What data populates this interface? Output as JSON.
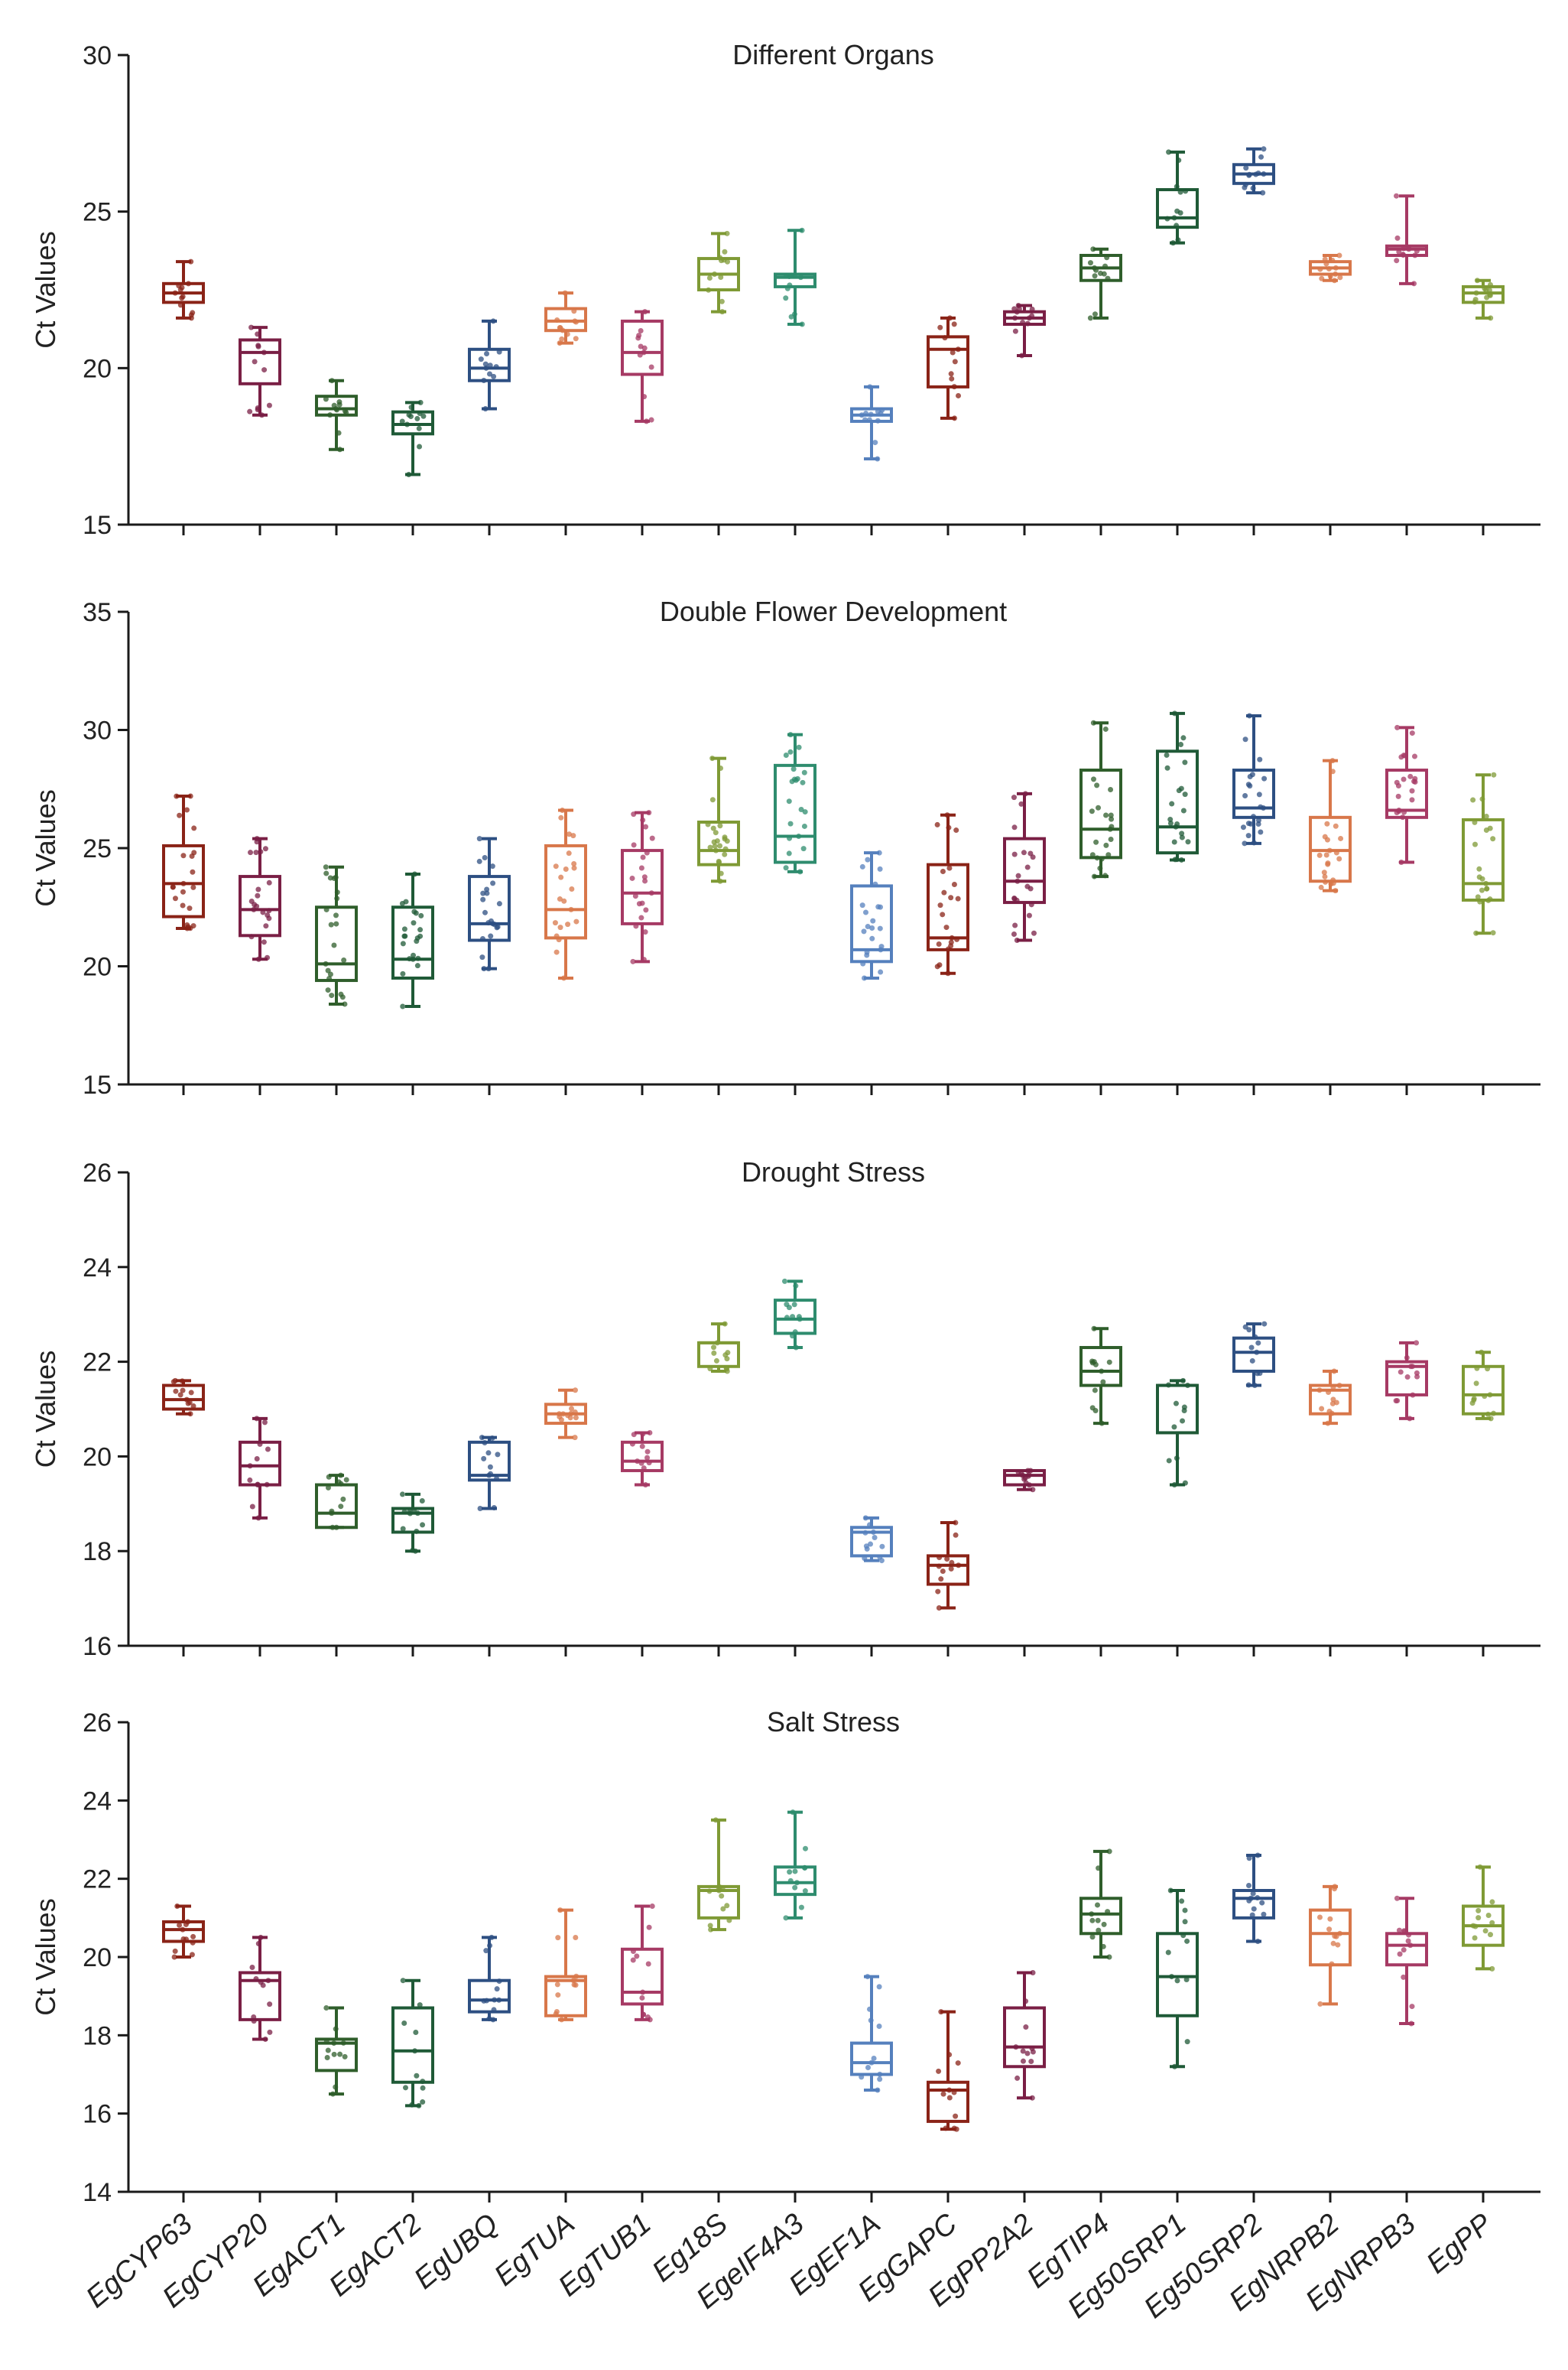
{
  "chart_data": {
    "type": "box",
    "categories": [
      "EgCYP63",
      "EgCYP20",
      "EgACT1",
      "EgACT2",
      "EgUBQ",
      "EgTUA",
      "EgTUB1",
      "Eg18S",
      "EgeIF4A3",
      "EgEF1A",
      "EgGAPC",
      "EgPP2A2",
      "EgTIP4",
      "Eg50SRP1",
      "Eg50SRP2",
      "EgNRPB2",
      "EgNRPB3",
      "EgPP"
    ],
    "colors": [
      "#8a2317",
      "#7a1f45",
      "#2f5e2b",
      "#1f5a37",
      "#2d4f82",
      "#d8774a",
      "#a63a64",
      "#7f9a35",
      "#2e8c6e",
      "#5580bd",
      "#8a2317",
      "#7a1f45",
      "#2f5e2b",
      "#1f5a37",
      "#2d4f82",
      "#d8774a",
      "#a63a64",
      "#7f9a35"
    ],
    "ylabel": "Ct Values",
    "panels": [
      {
        "title": "Different Organs",
        "ylim": [
          15,
          30
        ],
        "yticks": [
          15,
          20,
          25,
          30
        ],
        "boxes": [
          {
            "min": 21.6,
            "q1": 22.1,
            "median": 22.4,
            "q3": 22.7,
            "max": 23.4
          },
          {
            "min": 18.5,
            "q1": 19.5,
            "median": 20.5,
            "q3": 20.9,
            "max": 21.3
          },
          {
            "min": 17.4,
            "q1": 18.5,
            "median": 18.7,
            "q3": 19.1,
            "max": 19.6
          },
          {
            "min": 16.6,
            "q1": 17.9,
            "median": 18.2,
            "q3": 18.6,
            "max": 18.9
          },
          {
            "min": 18.7,
            "q1": 19.6,
            "median": 20.0,
            "q3": 20.6,
            "max": 21.5
          },
          {
            "min": 20.8,
            "q1": 21.2,
            "median": 21.5,
            "q3": 21.9,
            "max": 22.4
          },
          {
            "min": 18.3,
            "q1": 19.8,
            "median": 20.5,
            "q3": 21.5,
            "max": 21.8
          },
          {
            "min": 21.8,
            "q1": 22.5,
            "median": 23.0,
            "q3": 23.5,
            "max": 24.3
          },
          {
            "min": 21.4,
            "q1": 22.6,
            "median": 22.9,
            "q3": 23.0,
            "max": 24.4
          },
          {
            "min": 17.1,
            "q1": 18.3,
            "median": 18.5,
            "q3": 18.7,
            "max": 19.4
          },
          {
            "min": 18.4,
            "q1": 19.4,
            "median": 20.6,
            "q3": 21.0,
            "max": 21.6
          },
          {
            "min": 20.4,
            "q1": 21.4,
            "median": 21.6,
            "q3": 21.8,
            "max": 22.0
          },
          {
            "min": 21.6,
            "q1": 22.8,
            "median": 23.2,
            "q3": 23.6,
            "max": 23.8
          },
          {
            "min": 24.0,
            "q1": 24.5,
            "median": 24.8,
            "q3": 25.7,
            "max": 26.9
          },
          {
            "min": 25.6,
            "q1": 25.9,
            "median": 26.2,
            "q3": 26.5,
            "max": 27.0
          },
          {
            "min": 22.8,
            "q1": 23.0,
            "median": 23.2,
            "q3": 23.4,
            "max": 23.6
          },
          {
            "min": 22.7,
            "q1": 23.6,
            "median": 23.8,
            "q3": 23.9,
            "max": 25.5
          },
          {
            "min": 21.6,
            "q1": 22.1,
            "median": 22.4,
            "q3": 22.6,
            "max": 22.8
          }
        ]
      },
      {
        "title": "Double Flower Development",
        "ylim": [
          15,
          35
        ],
        "yticks": [
          15,
          20,
          25,
          30,
          35
        ],
        "boxes": [
          {
            "min": 21.6,
            "q1": 22.1,
            "median": 23.5,
            "q3": 25.1,
            "max": 27.2
          },
          {
            "min": 20.3,
            "q1": 21.3,
            "median": 22.4,
            "q3": 23.8,
            "max": 25.4
          },
          {
            "min": 18.4,
            "q1": 19.4,
            "median": 20.1,
            "q3": 22.5,
            "max": 24.2
          },
          {
            "min": 18.3,
            "q1": 19.5,
            "median": 20.3,
            "q3": 22.5,
            "max": 23.9
          },
          {
            "min": 19.9,
            "q1": 21.1,
            "median": 21.8,
            "q3": 23.8,
            "max": 25.4
          },
          {
            "min": 19.5,
            "q1": 21.2,
            "median": 22.4,
            "q3": 25.1,
            "max": 26.6
          },
          {
            "min": 20.2,
            "q1": 21.8,
            "median": 23.1,
            "q3": 24.9,
            "max": 26.5
          },
          {
            "min": 23.6,
            "q1": 24.3,
            "median": 24.9,
            "q3": 26.1,
            "max": 28.8
          },
          {
            "min": 24.0,
            "q1": 24.4,
            "median": 25.5,
            "q3": 28.5,
            "max": 29.8
          },
          {
            "min": 19.5,
            "q1": 20.2,
            "median": 20.7,
            "q3": 23.4,
            "max": 24.8
          },
          {
            "min": 19.7,
            "q1": 20.7,
            "median": 21.2,
            "q3": 24.3,
            "max": 26.4
          },
          {
            "min": 21.1,
            "q1": 22.7,
            "median": 23.6,
            "q3": 25.4,
            "max": 27.3
          },
          {
            "min": 23.8,
            "q1": 24.6,
            "median": 25.8,
            "q3": 28.3,
            "max": 30.3
          },
          {
            "min": 24.5,
            "q1": 24.8,
            "median": 25.9,
            "q3": 29.1,
            "max": 30.7
          },
          {
            "min": 25.2,
            "q1": 26.3,
            "median": 26.7,
            "q3": 28.3,
            "max": 30.6
          },
          {
            "min": 23.2,
            "q1": 23.6,
            "median": 24.9,
            "q3": 26.3,
            "max": 28.7
          },
          {
            "min": 24.4,
            "q1": 26.3,
            "median": 26.6,
            "q3": 28.3,
            "max": 30.1
          },
          {
            "min": 21.4,
            "q1": 22.8,
            "median": 23.5,
            "q3": 26.2,
            "max": 28.1
          }
        ]
      },
      {
        "title": "Drought Stress",
        "ylim": [
          16,
          26
        ],
        "yticks": [
          16,
          18,
          20,
          22,
          24,
          26
        ],
        "boxes": [
          {
            "min": 20.9,
            "q1": 21.0,
            "median": 21.2,
            "q3": 21.5,
            "max": 21.6
          },
          {
            "min": 18.7,
            "q1": 19.4,
            "median": 19.8,
            "q3": 20.3,
            "max": 20.8
          },
          {
            "min": 18.5,
            "q1": 18.5,
            "median": 18.8,
            "q3": 19.4,
            "max": 19.6
          },
          {
            "min": 18.0,
            "q1": 18.4,
            "median": 18.8,
            "q3": 18.9,
            "max": 19.2
          },
          {
            "min": 18.9,
            "q1": 19.5,
            "median": 19.6,
            "q3": 20.3,
            "max": 20.4
          },
          {
            "min": 20.4,
            "q1": 20.7,
            "median": 20.9,
            "q3": 21.1,
            "max": 21.4
          },
          {
            "min": 19.4,
            "q1": 19.7,
            "median": 19.9,
            "q3": 20.3,
            "max": 20.5
          },
          {
            "min": 21.8,
            "q1": 21.9,
            "median": 22.4,
            "q3": 22.4,
            "max": 22.8
          },
          {
            "min": 22.3,
            "q1": 22.6,
            "median": 22.9,
            "q3": 23.3,
            "max": 23.7
          },
          {
            "min": 17.8,
            "q1": 17.9,
            "median": 18.4,
            "q3": 18.5,
            "max": 18.7
          },
          {
            "min": 16.8,
            "q1": 17.3,
            "median": 17.7,
            "q3": 17.9,
            "max": 18.6
          },
          {
            "min": 19.3,
            "q1": 19.4,
            "median": 19.6,
            "q3": 19.7,
            "max": 19.7
          },
          {
            "min": 20.7,
            "q1": 21.5,
            "median": 21.8,
            "q3": 22.3,
            "max": 22.7
          },
          {
            "min": 19.4,
            "q1": 20.5,
            "median": 21.5,
            "q3": 21.5,
            "max": 21.6
          },
          {
            "min": 21.5,
            "q1": 21.8,
            "median": 22.2,
            "q3": 22.5,
            "max": 22.8
          },
          {
            "min": 20.7,
            "q1": 20.9,
            "median": 21.4,
            "q3": 21.5,
            "max": 21.8
          },
          {
            "min": 20.8,
            "q1": 21.3,
            "median": 21.9,
            "q3": 22.0,
            "max": 22.4
          },
          {
            "min": 20.8,
            "q1": 20.9,
            "median": 21.3,
            "q3": 21.9,
            "max": 22.2
          }
        ]
      },
      {
        "title": "Salt Stress",
        "ylim": [
          14,
          26
        ],
        "yticks": [
          14,
          16,
          18,
          20,
          22,
          24,
          26
        ],
        "boxes": [
          {
            "min": 20.0,
            "q1": 20.4,
            "median": 20.7,
            "q3": 20.9,
            "max": 21.3
          },
          {
            "min": 17.9,
            "q1": 18.4,
            "median": 19.4,
            "q3": 19.6,
            "max": 20.5
          },
          {
            "min": 16.5,
            "q1": 17.1,
            "median": 17.8,
            "q3": 17.9,
            "max": 18.7
          },
          {
            "min": 16.2,
            "q1": 16.8,
            "median": 17.6,
            "q3": 18.7,
            "max": 19.4
          },
          {
            "min": 18.4,
            "q1": 18.6,
            "median": 18.9,
            "q3": 19.4,
            "max": 20.5
          },
          {
            "min": 18.4,
            "q1": 18.5,
            "median": 19.4,
            "q3": 19.5,
            "max": 21.2
          },
          {
            "min": 18.4,
            "q1": 18.8,
            "median": 19.1,
            "q3": 20.2,
            "max": 21.3
          },
          {
            "min": 20.7,
            "q1": 21.0,
            "median": 21.7,
            "q3": 21.8,
            "max": 23.5
          },
          {
            "min": 21.0,
            "q1": 21.6,
            "median": 21.9,
            "q3": 22.3,
            "max": 23.7
          },
          {
            "min": 16.6,
            "q1": 17.0,
            "median": 17.3,
            "q3": 17.8,
            "max": 19.5
          },
          {
            "min": 15.6,
            "q1": 15.8,
            "median": 16.6,
            "q3": 16.8,
            "max": 18.6
          },
          {
            "min": 16.4,
            "q1": 17.2,
            "median": 17.7,
            "q3": 18.7,
            "max": 19.6
          },
          {
            "min": 20.0,
            "q1": 20.6,
            "median": 21.1,
            "q3": 21.5,
            "max": 22.7
          },
          {
            "min": 17.2,
            "q1": 18.5,
            "median": 19.5,
            "q3": 20.6,
            "max": 21.7
          },
          {
            "min": 20.4,
            "q1": 21.0,
            "median": 21.5,
            "q3": 21.7,
            "max": 22.6
          },
          {
            "min": 18.8,
            "q1": 19.8,
            "median": 20.6,
            "q3": 21.2,
            "max": 21.8
          },
          {
            "min": 18.3,
            "q1": 19.8,
            "median": 20.3,
            "q3": 20.6,
            "max": 21.5
          },
          {
            "min": 19.7,
            "q1": 20.3,
            "median": 20.8,
            "q3": 21.3,
            "max": 22.3
          }
        ]
      }
    ]
  }
}
